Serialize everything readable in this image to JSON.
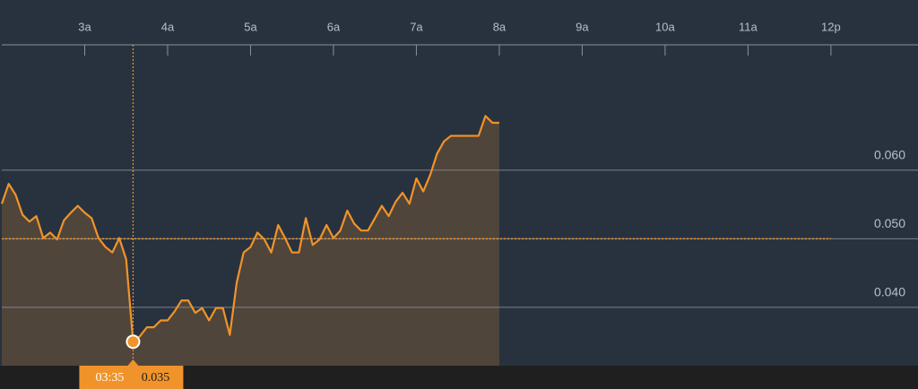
{
  "chart_data": {
    "type": "area",
    "x": [
      120,
      125,
      130,
      135,
      140,
      145,
      150,
      155,
      160,
      165,
      170,
      175,
      180,
      185,
      190,
      195,
      200,
      205,
      210,
      215,
      220,
      225,
      230,
      235,
      240,
      245,
      250,
      255,
      260,
      265,
      270,
      275,
      280,
      285,
      290,
      295,
      300,
      305,
      310,
      315,
      320,
      325,
      330,
      335,
      340,
      345,
      350,
      355,
      360,
      365,
      370,
      375,
      380,
      385,
      390,
      395,
      400,
      405,
      410,
      415,
      420,
      425,
      430,
      435,
      440,
      445,
      450,
      455,
      460,
      465,
      470,
      475,
      480
    ],
    "series": [
      {
        "color": "#f0932b",
        "values": [
          0.0551,
          0.058,
          0.0564,
          0.0535,
          0.0525,
          0.0533,
          0.0501,
          0.0509,
          0.0499,
          0.0527,
          0.0538,
          0.0548,
          0.0538,
          0.053,
          0.0501,
          0.0488,
          0.048,
          0.0501,
          0.047,
          0.035,
          0.0358,
          0.0371,
          0.0371,
          0.0381,
          0.0381,
          0.0394,
          0.041,
          0.041,
          0.0392,
          0.0399,
          0.0381,
          0.0399,
          0.0399,
          0.036,
          0.0436,
          0.048,
          0.0488,
          0.0509,
          0.0499,
          0.048,
          0.052,
          0.0501,
          0.048,
          0.048,
          0.053,
          0.0491,
          0.0499,
          0.052,
          0.0501,
          0.0512,
          0.0541,
          0.0522,
          0.0512,
          0.0512,
          0.053,
          0.0548,
          0.0533,
          0.0554,
          0.0567,
          0.0551,
          0.0588,
          0.0569,
          0.0593,
          0.0624,
          0.0642,
          0.065,
          0.065,
          0.065,
          0.065,
          0.065,
          0.0679,
          0.0669,
          0.0669
        ]
      }
    ],
    "xlim": [
      120,
      783
    ],
    "xticks": [
      {
        "value": 180,
        "label": "3a"
      },
      {
        "value": 240,
        "label": "4a"
      },
      {
        "value": 300,
        "label": "5a"
      },
      {
        "value": 360,
        "label": "6a"
      },
      {
        "value": 420,
        "label": "7a"
      },
      {
        "value": 480,
        "label": "8a"
      },
      {
        "value": 540,
        "label": "9a"
      },
      {
        "value": 600,
        "label": "10a"
      },
      {
        "value": 660,
        "label": "11a"
      },
      {
        "value": 720,
        "label": "12p"
      }
    ],
    "ylim": [
      0.0315,
      0.0767
    ],
    "yticks": [
      {
        "value": 0.04,
        "label": "0.040"
      },
      {
        "value": 0.05,
        "label": "0.050"
      },
      {
        "value": 0.06,
        "label": "0.060"
      }
    ],
    "grid": true,
    "reference_line": 0.05,
    "crosshair": {
      "x": 215,
      "value": 0.035,
      "time_label": "03:35",
      "value_label": "0.035"
    }
  }
}
